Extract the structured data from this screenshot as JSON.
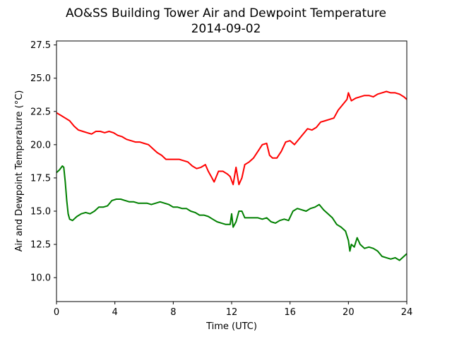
{
  "chart_data": {
    "type": "line",
    "title": "AO&SS Building Tower Air and Dewpoint Temperature",
    "subtitle": "2014-09-02",
    "xlabel": "Time (UTC)",
    "ylabel": "Air and Dewpoint Temperature (°C)",
    "xlim": [
      0,
      24
    ],
    "ylim": [
      8.2,
      27.8
    ],
    "xticks": [
      0,
      4,
      8,
      12,
      16,
      20,
      24
    ],
    "yticks": [
      10.0,
      12.5,
      15.0,
      17.5,
      20.0,
      22.5,
      25.0,
      27.5
    ],
    "xtick_labels": [
      "0",
      "4",
      "8",
      "12",
      "16",
      "20",
      "24"
    ],
    "ytick_labels": [
      "10.0",
      "12.5",
      "15.0",
      "17.5",
      "20.0",
      "22.5",
      "25.0",
      "27.5"
    ],
    "grid": false,
    "series": [
      {
        "color": "#ff0000",
        "x": [
          0,
          0.3,
          0.6,
          0.9,
          1.2,
          1.5,
          1.8,
          2.1,
          2.4,
          2.7,
          3.0,
          3.3,
          3.6,
          3.9,
          4.2,
          4.5,
          4.8,
          5.1,
          5.4,
          5.7,
          6.0,
          6.3,
          6.6,
          6.9,
          7.2,
          7.5,
          7.8,
          8.1,
          8.4,
          8.7,
          9.0,
          9.3,
          9.6,
          9.9,
          10.2,
          10.4,
          10.6,
          10.8,
          11.1,
          11.4,
          11.7,
          11.9,
          12.1,
          12.3,
          12.5,
          12.7,
          12.9,
          13.2,
          13.5,
          13.8,
          14.1,
          14.4,
          14.6,
          14.8,
          15.1,
          15.4,
          15.7,
          16.0,
          16.3,
          16.6,
          16.9,
          17.2,
          17.5,
          17.8,
          18.1,
          18.4,
          18.7,
          19.0,
          19.3,
          19.6,
          19.9,
          20.0,
          20.2,
          20.5,
          20.8,
          21.1,
          21.4,
          21.7,
          22.0,
          22.3,
          22.6,
          22.9,
          23.2,
          23.5,
          23.8,
          24.0
        ],
        "values": [
          22.4,
          22.2,
          22.0,
          21.8,
          21.4,
          21.1,
          21.0,
          20.9,
          20.8,
          21.0,
          21.0,
          20.9,
          21.0,
          20.9,
          20.7,
          20.6,
          20.4,
          20.3,
          20.2,
          20.2,
          20.1,
          20.0,
          19.7,
          19.4,
          19.2,
          18.9,
          18.9,
          18.9,
          18.9,
          18.8,
          18.7,
          18.4,
          18.2,
          18.3,
          18.5,
          18.0,
          17.6,
          17.2,
          18.0,
          18.0,
          17.8,
          17.6,
          17.0,
          18.3,
          17.0,
          17.5,
          18.5,
          18.7,
          19.0,
          19.5,
          20.0,
          20.1,
          19.2,
          19.0,
          19.0,
          19.5,
          20.2,
          20.3,
          20.0,
          20.4,
          20.8,
          21.2,
          21.1,
          21.3,
          21.7,
          21.8,
          21.9,
          22.0,
          22.6,
          23.0,
          23.4,
          23.9,
          23.3,
          23.5,
          23.6,
          23.7,
          23.7,
          23.6,
          23.8,
          23.9,
          24.0,
          23.9,
          23.9,
          23.8,
          23.6,
          23.4
        ]
      },
      {
        "color": "#008000",
        "x": [
          0,
          0.2,
          0.4,
          0.5,
          0.6,
          0.7,
          0.8,
          0.9,
          1.1,
          1.4,
          1.7,
          2.0,
          2.3,
          2.6,
          2.9,
          3.2,
          3.5,
          3.8,
          4.1,
          4.4,
          4.7,
          5.0,
          5.3,
          5.6,
          5.9,
          6.2,
          6.5,
          6.8,
          7.1,
          7.4,
          7.7,
          8.0,
          8.3,
          8.6,
          8.9,
          9.2,
          9.5,
          9.8,
          10.1,
          10.4,
          10.7,
          11.0,
          11.3,
          11.6,
          11.9,
          12.0,
          12.1,
          12.3,
          12.5,
          12.7,
          12.9,
          13.2,
          13.5,
          13.8,
          14.1,
          14.4,
          14.7,
          15.0,
          15.3,
          15.6,
          15.9,
          16.2,
          16.5,
          16.8,
          17.1,
          17.4,
          17.7,
          18.0,
          18.3,
          18.6,
          18.9,
          19.2,
          19.5,
          19.8,
          20.0,
          20.1,
          20.2,
          20.4,
          20.6,
          20.8,
          21.1,
          21.4,
          21.7,
          22.0,
          22.3,
          22.6,
          22.9,
          23.2,
          23.5,
          23.8,
          24.0
        ],
        "values": [
          17.9,
          18.1,
          18.4,
          18.3,
          17.2,
          15.8,
          14.8,
          14.4,
          14.3,
          14.6,
          14.8,
          14.9,
          14.8,
          15.0,
          15.3,
          15.3,
          15.4,
          15.8,
          15.9,
          15.9,
          15.8,
          15.7,
          15.7,
          15.6,
          15.6,
          15.6,
          15.5,
          15.6,
          15.7,
          15.6,
          15.5,
          15.3,
          15.3,
          15.2,
          15.2,
          15.0,
          14.9,
          14.7,
          14.7,
          14.6,
          14.4,
          14.2,
          14.1,
          14.0,
          14.0,
          14.8,
          13.8,
          14.2,
          15.0,
          15.0,
          14.5,
          14.5,
          14.5,
          14.5,
          14.4,
          14.5,
          14.2,
          14.1,
          14.3,
          14.4,
          14.3,
          15.0,
          15.2,
          15.1,
          15.0,
          15.2,
          15.3,
          15.5,
          15.1,
          14.8,
          14.5,
          14.0,
          13.8,
          13.5,
          12.8,
          12.0,
          12.5,
          12.3,
          13.0,
          12.5,
          12.2,
          12.3,
          12.2,
          12.0,
          11.6,
          11.5,
          11.4,
          11.5,
          11.3,
          11.6,
          11.8
        ]
      }
    ]
  }
}
